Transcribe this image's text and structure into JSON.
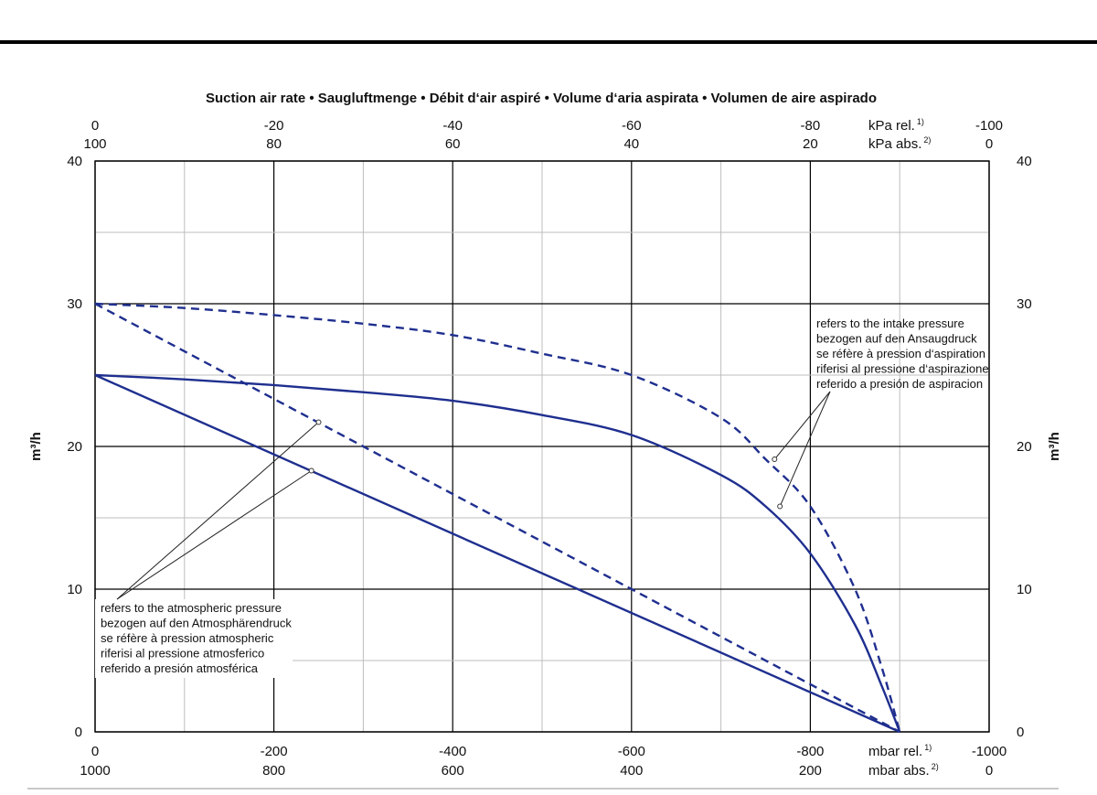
{
  "chart_data": {
    "type": "line",
    "title": "Suction air rate  •  Saugluftmenge  •  Débit d‘air aspiré  •  Volume d‘aria aspirata  •  Volumen de aire aspirado",
    "ylabel": "m³/h",
    "ylim": [
      0,
      40
    ],
    "y_ticks": [
      "0",
      "10",
      "20",
      "30",
      "40"
    ],
    "xlim": [
      0,
      -1000
    ],
    "x_bottom_rel": {
      "unit": "mbar rel.",
      "unit_sup": "1)",
      "ticks": [
        "0",
        "-200",
        "-400",
        "-600",
        "-800",
        "-1000"
      ]
    },
    "x_bottom_abs": {
      "unit": "mbar abs.",
      "unit_sup": "2)",
      "ticks": [
        "1000",
        "800",
        "600",
        "400",
        "200",
        "0"
      ]
    },
    "x_top_rel": {
      "unit": "kPa rel.",
      "unit_sup": "1)",
      "ticks": [
        "0",
        "-20",
        "-40",
        "-60",
        "-80",
        "-100"
      ]
    },
    "x_top_abs": {
      "unit": "kPa abs.",
      "unit_sup": "2)",
      "ticks": [
        "100",
        "80",
        "60",
        "40",
        "20",
        "0"
      ]
    },
    "grid": true,
    "series": [
      {
        "style": "solid",
        "reference": "intake",
        "x": [
          0,
          -100,
          -200,
          -300,
          -400,
          -500,
          -600,
          -700,
          -750,
          -800,
          -850,
          -880,
          -900
        ],
        "y": [
          25,
          24.7,
          24.3,
          23.8,
          23.2,
          22.2,
          20.8,
          18.0,
          15.8,
          12.5,
          7.5,
          3.2,
          0
        ]
      },
      {
        "style": "dashed",
        "reference": "intake",
        "x": [
          0,
          -100,
          -200,
          -300,
          -400,
          -500,
          -600,
          -700,
          -750,
          -800,
          -850,
          -880,
          -900
        ],
        "y": [
          30,
          29.7,
          29.2,
          28.6,
          27.8,
          26.5,
          25.0,
          22.0,
          19.1,
          15.8,
          10.0,
          4.5,
          0
        ]
      },
      {
        "style": "solid",
        "reference": "atmospheric",
        "x": [
          0,
          -900
        ],
        "y": [
          25,
          0
        ]
      },
      {
        "style": "dashed",
        "reference": "atmospheric",
        "x": [
          0,
          -900
        ],
        "y": [
          30,
          0
        ]
      }
    ],
    "annotations": {
      "intake": {
        "lines": [
          "refers to the intake pressure",
          "bezogen auf den Ansaugdruck",
          "se réfère à pression d‘aspiration",
          "riferisi al pressione d‘aspirazione",
          "referido a presión de aspiracion"
        ],
        "points": [
          {
            "x": -760,
            "y": 19.1
          },
          {
            "x": -766,
            "y": 15.8
          }
        ]
      },
      "atmospheric": {
        "lines": [
          "refers to the atmospheric pressure",
          "bezogen auf den Atmosphärendruck",
          "se réfère à pression atmospheric",
          "riferisi al pressione atmosferico",
          "referido a presión atmosférica"
        ],
        "points": [
          {
            "x": -250,
            "y": 21.7
          },
          {
            "x": -242,
            "y": 18.3
          }
        ]
      }
    },
    "colors": {
      "curve": "#1f2f8f",
      "grid_major": "#000000",
      "grid_minor": "#bdbdbd"
    }
  }
}
